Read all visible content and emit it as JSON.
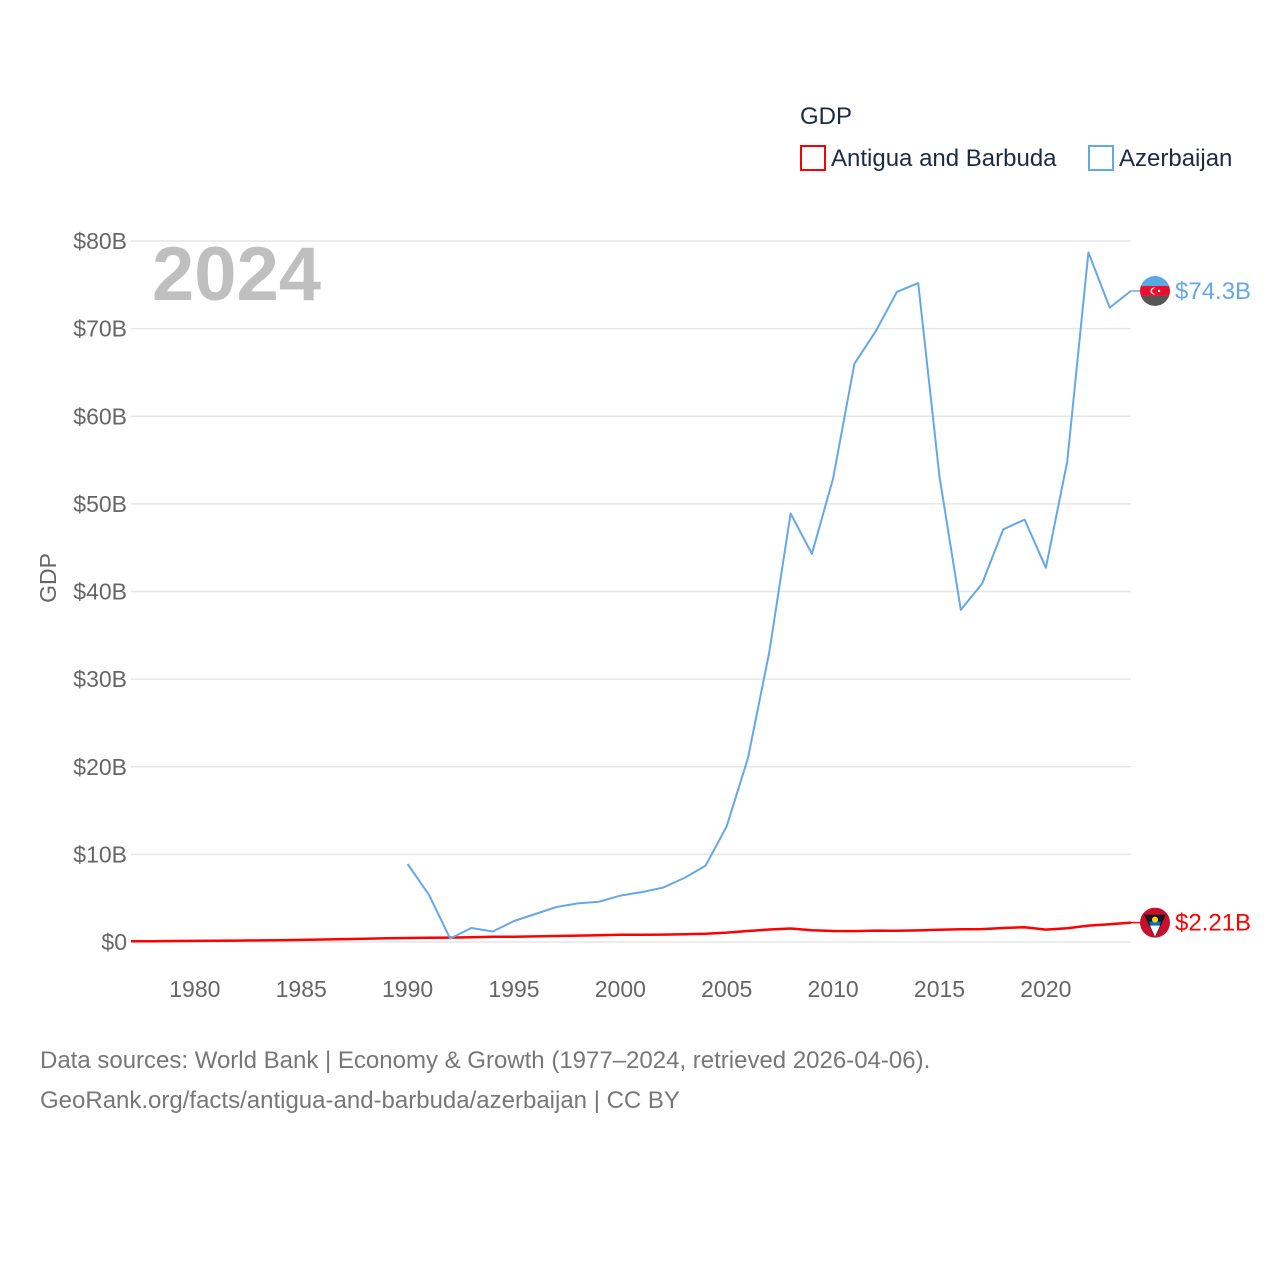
{
  "chart_data": {
    "type": "line",
    "title": "",
    "ylabel": "GDP",
    "xlabel": "",
    "year_label": "2024",
    "legend_title": "GDP",
    "xlim": [
      1977,
      2024
    ],
    "ylim": [
      0,
      80
    ],
    "x_ticks": [
      {
        "value": 1980,
        "label": "1980"
      },
      {
        "value": 1985,
        "label": "1985"
      },
      {
        "value": 1990,
        "label": "1990"
      },
      {
        "value": 1995,
        "label": "1995"
      },
      {
        "value": 2000,
        "label": "2000"
      },
      {
        "value": 2005,
        "label": "2005"
      },
      {
        "value": 2010,
        "label": "2010"
      },
      {
        "value": 2015,
        "label": "2015"
      },
      {
        "value": 2020,
        "label": "2020"
      }
    ],
    "y_ticks": [
      {
        "value": 0,
        "label": "$0"
      },
      {
        "value": 10,
        "label": "$10B"
      },
      {
        "value": 20,
        "label": "$20B"
      },
      {
        "value": 30,
        "label": "$30B"
      },
      {
        "value": 40,
        "label": "$40B"
      },
      {
        "value": 50,
        "label": "$50B"
      },
      {
        "value": 60,
        "label": "$60B"
      },
      {
        "value": 70,
        "label": "$70B"
      },
      {
        "value": 80,
        "label": "$80B"
      }
    ],
    "series": [
      {
        "name": "Antigua and Barbuda",
        "key": "antigua",
        "color": "#ff0000",
        "end_label": "$2.21B",
        "flag_icon": "antigua-flag-icon",
        "x": [
          1977,
          1978,
          1979,
          1980,
          1981,
          1982,
          1983,
          1984,
          1985,
          1986,
          1987,
          1988,
          1989,
          1990,
          1991,
          1992,
          1993,
          1994,
          1995,
          1996,
          1997,
          1998,
          1999,
          2000,
          2001,
          2002,
          2003,
          2004,
          2005,
          2006,
          2007,
          2008,
          2009,
          2010,
          2011,
          2012,
          2013,
          2014,
          2015,
          2016,
          2017,
          2018,
          2019,
          2020,
          2021,
          2022,
          2023,
          2024
        ],
        "values": [
          0.08,
          0.09,
          0.11,
          0.13,
          0.15,
          0.16,
          0.18,
          0.2,
          0.24,
          0.29,
          0.33,
          0.38,
          0.42,
          0.46,
          0.48,
          0.5,
          0.54,
          0.59,
          0.6,
          0.64,
          0.69,
          0.73,
          0.77,
          0.83,
          0.83,
          0.85,
          0.89,
          0.95,
          1.07,
          1.25,
          1.43,
          1.54,
          1.35,
          1.25,
          1.24,
          1.3,
          1.28,
          1.32,
          1.39,
          1.46,
          1.47,
          1.6,
          1.69,
          1.41,
          1.56,
          1.87,
          2.03,
          2.21
        ]
      },
      {
        "name": "Azerbaijan",
        "key": "azerbaijan",
        "color": "#64a8e6",
        "end_label": "$74.3B",
        "flag_icon": "azerbaijan-flag-icon",
        "x": [
          1990,
          1991,
          1992,
          1993,
          1994,
          1995,
          1996,
          1997,
          1998,
          1999,
          2000,
          2001,
          2002,
          2003,
          2004,
          2005,
          2006,
          2007,
          2008,
          2009,
          2010,
          2011,
          2012,
          2013,
          2014,
          2015,
          2016,
          2017,
          2018,
          2019,
          2020,
          2021,
          2022,
          2023,
          2024
        ],
        "values": [
          8.9,
          5.4,
          0.4,
          1.6,
          1.2,
          2.4,
          3.2,
          4.0,
          4.4,
          4.6,
          5.3,
          5.7,
          6.2,
          7.3,
          8.7,
          13.2,
          21.0,
          33.1,
          48.9,
          44.3,
          52.9,
          66.0,
          69.7,
          74.2,
          75.2,
          53.1,
          37.9,
          40.9,
          47.1,
          48.2,
          42.7,
          54.8,
          78.7,
          72.4,
          74.3
        ]
      }
    ]
  },
  "legend": {
    "title": "GDP",
    "items": [
      {
        "label": "Antigua and Barbuda",
        "color": "#ff0000"
      },
      {
        "label": "Azerbaijan",
        "color": "#64a8e6"
      }
    ]
  },
  "source": {
    "line1": "Data sources: World Bank | Economy & Growth (1977–2024, retrieved 2026-04-06).",
    "line2": "GeoRank.org/facts/antigua-and-barbuda/azerbaijan | CC BY"
  }
}
